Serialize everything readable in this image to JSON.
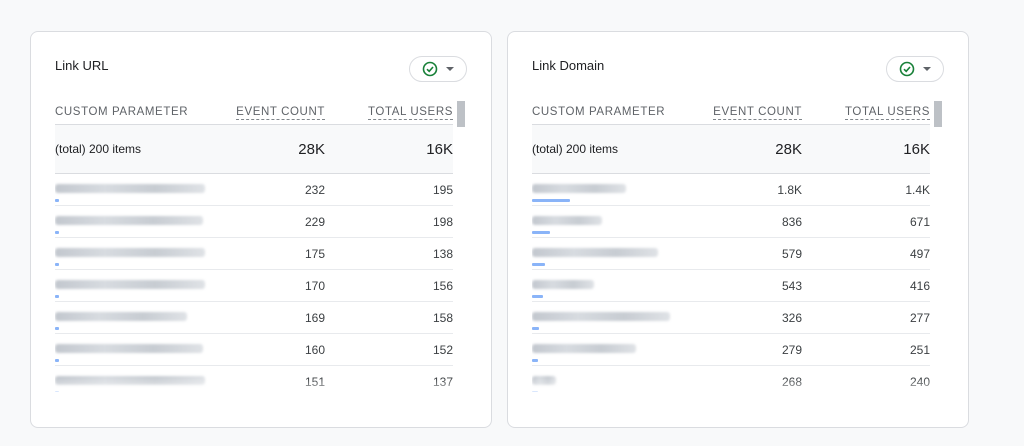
{
  "cards": [
    {
      "title": "Link URL",
      "columns": {
        "param": "CUSTOM PARAMETER",
        "events": "EVENT COUNT",
        "users": "TOTAL USERS"
      },
      "total": {
        "label": "(total) 200 items",
        "events": "28K",
        "users": "16K"
      },
      "rows": [
        {
          "events": "232",
          "users": "195",
          "bar": 0
        },
        {
          "events": "229",
          "users": "198",
          "bar": 0
        },
        {
          "events": "175",
          "users": "138",
          "bar": 0
        },
        {
          "events": "170",
          "users": "156",
          "bar": 0
        },
        {
          "events": "169",
          "users": "158",
          "bar": 0
        },
        {
          "events": "160",
          "users": "152",
          "bar": 0
        },
        {
          "events": "151",
          "users": "137",
          "bar": 0
        }
      ]
    },
    {
      "title": "Link Domain",
      "columns": {
        "param": "CUSTOM PARAMETER",
        "events": "EVENT COUNT",
        "users": "TOTAL USERS"
      },
      "total": {
        "label": "(total) 200 items",
        "events": "28K",
        "users": "16K"
      },
      "rows": [
        {
          "events": "1.8K",
          "users": "1.4K",
          "bar": 0.064
        },
        {
          "events": "836",
          "users": "671",
          "bar": 0.03
        },
        {
          "events": "579",
          "users": "497",
          "bar": 0.021
        },
        {
          "events": "543",
          "users": "416",
          "bar": 0.019
        },
        {
          "events": "326",
          "users": "277",
          "bar": 0.012
        },
        {
          "events": "279",
          "users": "251",
          "bar": 0.01
        },
        {
          "events": "268",
          "users": "240",
          "bar": 0.01
        }
      ]
    }
  ],
  "icons": {
    "compare": "check-circle-icon",
    "dropdown": "caret-down-icon"
  },
  "colors": {
    "check": "#188038",
    "bar": "#8ab4f8"
  }
}
